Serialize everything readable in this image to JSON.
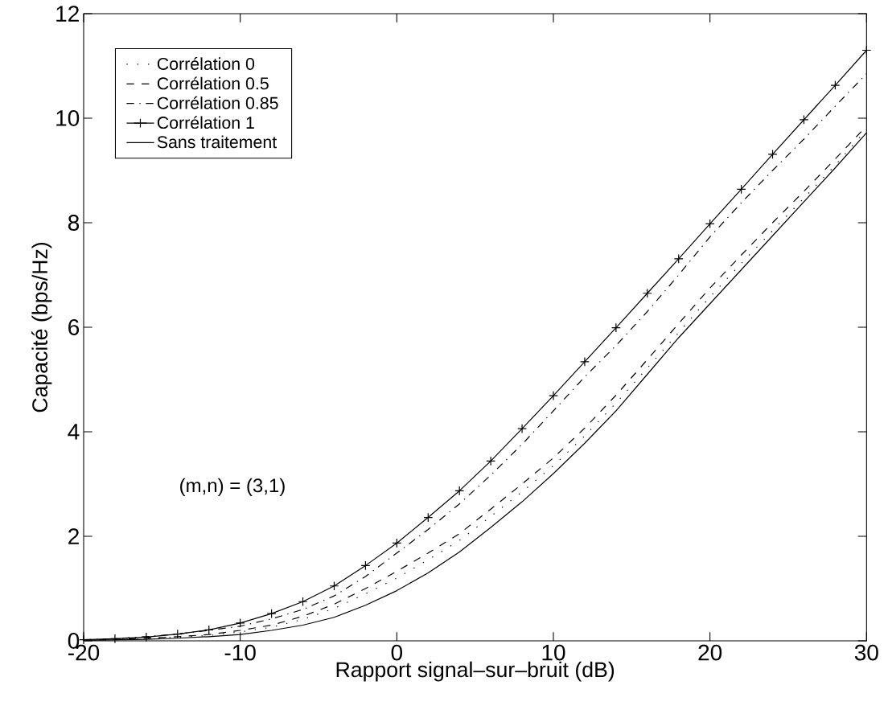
{
  "chart_data": {
    "type": "line",
    "xlabel": "Rapport signal–sur–bruit (dB)",
    "ylabel": "Capacité (bps/Hz)",
    "annotations": [
      "(m,n) = (3,1)"
    ],
    "x": [
      -20,
      -18,
      -16,
      -14,
      -12,
      -10,
      -8,
      -6,
      -4,
      -2,
      0,
      2,
      4,
      6,
      8,
      10,
      12,
      14,
      16,
      18,
      20,
      22,
      24,
      26,
      28,
      30
    ],
    "series": [
      {
        "name": "Corrélation 0",
        "color": "#000000",
        "line_style": "dotted",
        "marker": "none",
        "values": [
          0.01,
          0.02,
          0.04,
          0.07,
          0.1,
          0.17,
          0.26,
          0.41,
          0.62,
          0.9,
          1.2,
          1.55,
          1.92,
          2.38,
          2.85,
          3.35,
          3.92,
          4.55,
          5.22,
          5.9,
          6.58,
          7.22,
          7.85,
          8.47,
          9.1,
          9.78
        ]
      },
      {
        "name": "Corrélation 0.5",
        "color": "#000000",
        "line_style": "dashed",
        "marker": "none",
        "values": [
          0.01,
          0.03,
          0.05,
          0.08,
          0.12,
          0.2,
          0.3,
          0.47,
          0.7,
          1.0,
          1.33,
          1.68,
          2.05,
          2.52,
          3.0,
          3.5,
          4.07,
          4.7,
          5.38,
          6.07,
          6.75,
          7.38,
          8.0,
          8.6,
          9.22,
          9.85
        ]
      },
      {
        "name": "Corrélation 0.85",
        "color": "#000000",
        "line_style": "dashdot",
        "marker": "none",
        "values": [
          0.02,
          0.04,
          0.08,
          0.13,
          0.2,
          0.28,
          0.42,
          0.6,
          0.86,
          1.23,
          1.68,
          2.13,
          2.62,
          3.17,
          3.76,
          4.4,
          5.05,
          5.65,
          6.3,
          7.0,
          7.73,
          8.38,
          9.0,
          9.6,
          10.23,
          10.85
        ]
      },
      {
        "name": "Corrélation 1",
        "color": "#000000",
        "line_style": "solid",
        "marker": "cross",
        "values": [
          0.02,
          0.04,
          0.07,
          0.13,
          0.21,
          0.34,
          0.52,
          0.75,
          1.05,
          1.44,
          1.87,
          2.36,
          2.87,
          3.44,
          4.06,
          4.69,
          5.34,
          5.99,
          6.65,
          7.31,
          7.98,
          8.64,
          9.31,
          9.97,
          10.63,
          11.3
        ]
      },
      {
        "name": "Sans traitement",
        "color": "#000000",
        "line_style": "solid",
        "marker": "none",
        "values": [
          0.01,
          0.02,
          0.03,
          0.05,
          0.08,
          0.12,
          0.2,
          0.3,
          0.45,
          0.68,
          0.96,
          1.3,
          1.7,
          2.17,
          2.66,
          3.2,
          3.78,
          4.4,
          5.1,
          5.8,
          6.45,
          7.1,
          7.75,
          8.4,
          9.05,
          9.72
        ]
      }
    ],
    "xlim": [
      -20,
      30
    ],
    "ylim": [
      0,
      12
    ],
    "xticks": [
      -20,
      -10,
      0,
      10,
      20,
      30
    ],
    "yticks": [
      0,
      2,
      4,
      6,
      8,
      10,
      12
    ],
    "grid": false,
    "legend": "top left"
  }
}
